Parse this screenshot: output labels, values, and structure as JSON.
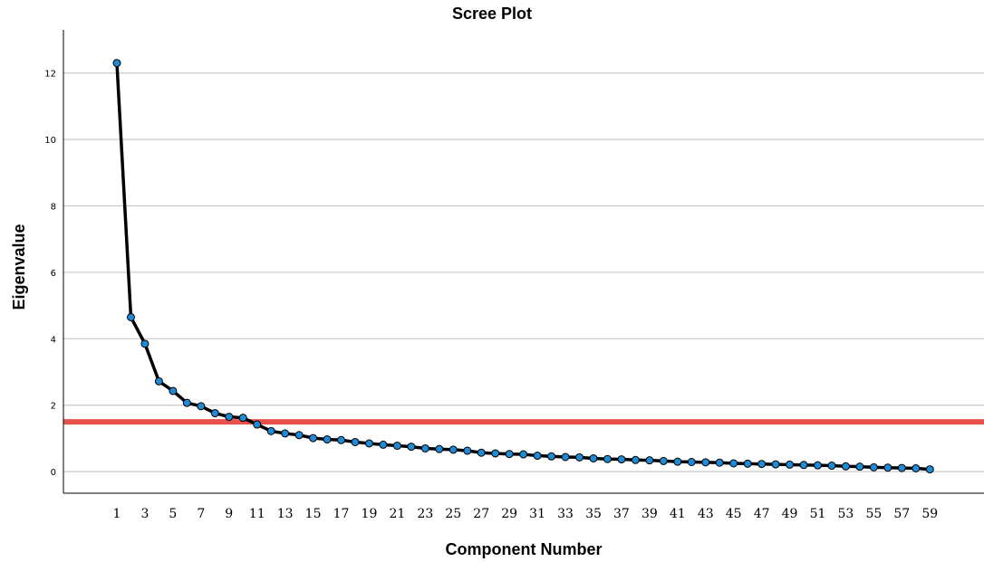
{
  "chart_data": {
    "type": "line",
    "title": "Scree Plot",
    "xlabel": "Component Number",
    "ylabel": "Eigenvalue",
    "x": [
      1,
      2,
      3,
      4,
      5,
      6,
      7,
      8,
      9,
      10,
      11,
      12,
      13,
      14,
      15,
      16,
      17,
      18,
      19,
      20,
      21,
      22,
      23,
      24,
      25,
      26,
      27,
      28,
      29,
      30,
      31,
      32,
      33,
      34,
      35,
      36,
      37,
      38,
      39,
      40,
      41,
      42,
      43,
      44,
      45,
      46,
      47,
      48,
      49,
      50,
      51,
      52,
      53,
      54,
      55,
      56,
      57,
      58,
      59
    ],
    "x_tick_labels": [
      "1",
      "3",
      "5",
      "7",
      "9",
      "11",
      "13",
      "15",
      "17",
      "19",
      "21",
      "23",
      "25",
      "27",
      "29",
      "31",
      "33",
      "35",
      "37",
      "39",
      "41",
      "43",
      "45",
      "47",
      "49",
      "51",
      "53",
      "55",
      "57",
      "59"
    ],
    "y_ticks": [
      "0",
      "2",
      "4",
      "6",
      "8",
      "10",
      "12"
    ],
    "ylim": [
      -0.65,
      13.3
    ],
    "grid": true,
    "series": [
      {
        "color": "#000000",
        "marker_color": "#1f8ad6",
        "values": [
          12.3,
          4.65,
          3.85,
          2.72,
          2.43,
          2.07,
          1.97,
          1.76,
          1.65,
          1.62,
          1.42,
          1.22,
          1.15,
          1.1,
          1.01,
          0.97,
          0.95,
          0.89,
          0.85,
          0.81,
          0.78,
          0.75,
          0.7,
          0.68,
          0.66,
          0.63,
          0.57,
          0.55,
          0.53,
          0.52,
          0.48,
          0.46,
          0.44,
          0.43,
          0.4,
          0.38,
          0.37,
          0.35,
          0.34,
          0.32,
          0.3,
          0.29,
          0.28,
          0.27,
          0.25,
          0.24,
          0.23,
          0.22,
          0.21,
          0.2,
          0.19,
          0.18,
          0.16,
          0.15,
          0.13,
          0.12,
          0.11,
          0.1,
          0.07
        ]
      }
    ],
    "reference_line": {
      "y": 1.5,
      "color": "#e8504c"
    }
  }
}
